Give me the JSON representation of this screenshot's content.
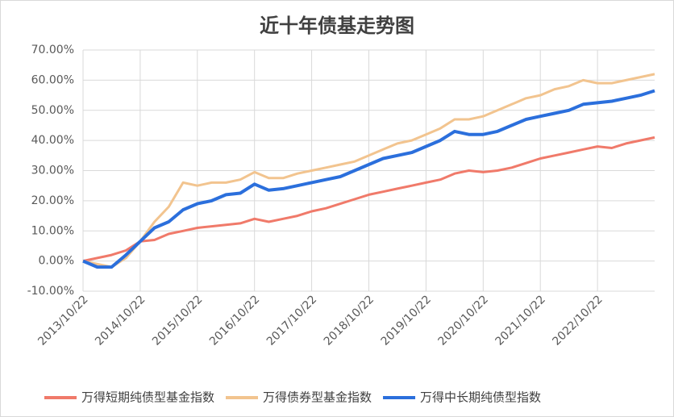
{
  "chart_data": {
    "type": "line",
    "title": "近十年债基走势图",
    "categories": [
      "2013/10/22",
      null,
      null,
      null,
      "2014/10/22",
      null,
      null,
      null,
      "2015/10/22",
      null,
      null,
      null,
      "2016/10/22",
      null,
      null,
      null,
      "2017/10/22",
      null,
      null,
      null,
      "2018/10/22",
      null,
      null,
      null,
      "2019/10/22",
      null,
      null,
      null,
      "2020/10/22",
      null,
      null,
      null,
      "2021/10/22",
      null,
      null,
      null,
      "2022/10/22",
      null,
      null,
      null,
      null
    ],
    "series": [
      {
        "name": "万得短期纯债型基金指数",
        "color": "#f07a6a",
        "values": [
          0,
          1,
          2,
          3.5,
          6.5,
          7,
          9,
          10,
          11,
          11.5,
          12,
          12.5,
          14,
          13,
          14,
          15,
          16.5,
          17.5,
          19,
          20.5,
          22,
          23,
          24,
          25,
          26,
          27,
          29,
          30,
          29.5,
          30,
          31,
          32.5,
          34,
          35,
          36,
          37,
          38,
          37.5,
          39,
          40,
          41
        ]
      },
      {
        "name": "万得债券型基金指数",
        "color": "#f2c48f",
        "values": [
          0,
          -1,
          -2,
          1,
          6.5,
          13,
          18,
          26,
          25,
          26,
          26,
          27,
          29.5,
          27.5,
          27.5,
          29,
          30,
          31,
          32,
          33,
          35,
          37,
          39,
          40,
          42,
          44,
          47,
          47,
          48,
          50,
          52,
          54,
          55,
          57,
          58,
          60,
          59,
          59,
          60,
          61,
          62
        ]
      },
      {
        "name": "万得中长期纯债型指数",
        "color": "#2b6fdc",
        "values": [
          0,
          -2,
          -2,
          2,
          6.5,
          11,
          13,
          17,
          19,
          20,
          22,
          22.5,
          25.5,
          23.5,
          24,
          25,
          26,
          27,
          28,
          30,
          32,
          34,
          35,
          36,
          38,
          40,
          43,
          42,
          42,
          43,
          45,
          47,
          48,
          49,
          50,
          52,
          52.5,
          53,
          54,
          55,
          56.5
        ]
      }
    ],
    "ylim": [
      -10,
      70
    ],
    "yticks": [
      {
        "value": -10,
        "label": "-10.00%"
      },
      {
        "value": 0,
        "label": "0.00%"
      },
      {
        "value": 10,
        "label": "10.00%"
      },
      {
        "value": 20,
        "label": "20.00%"
      },
      {
        "value": 30,
        "label": "30.00%"
      },
      {
        "value": 40,
        "label": "40.00%"
      },
      {
        "value": 50,
        "label": "50.00%"
      },
      {
        "value": 60,
        "label": "60.00%"
      },
      {
        "value": 70,
        "label": "70.00%"
      }
    ],
    "grid": true,
    "legend": "bottom"
  }
}
